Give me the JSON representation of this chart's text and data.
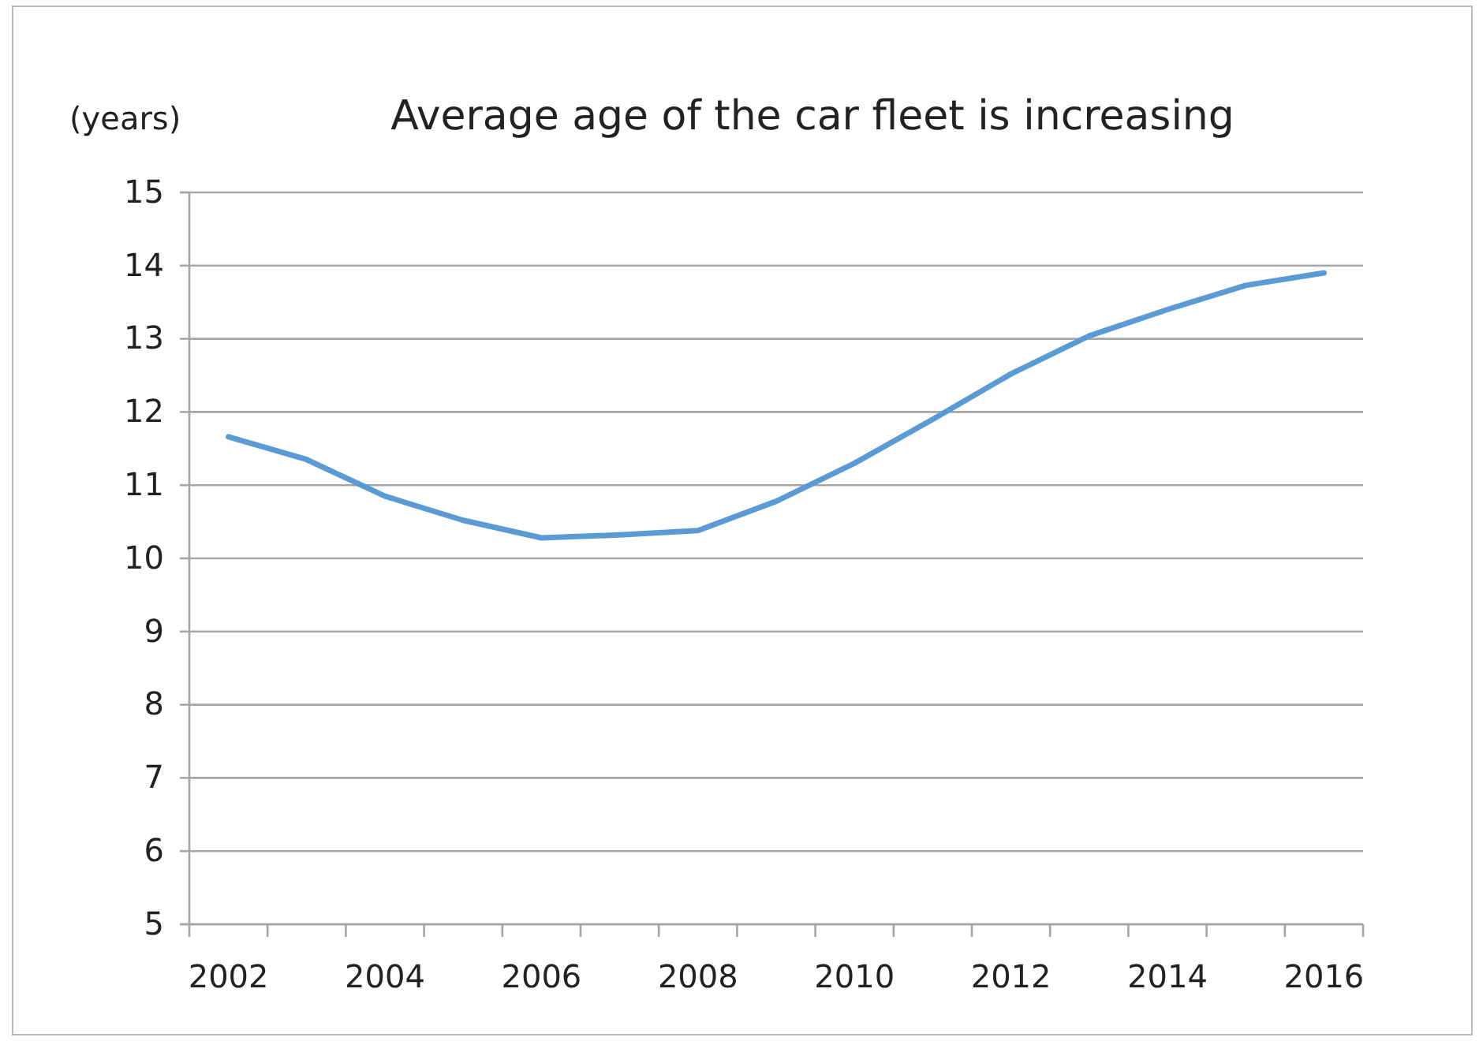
{
  "chart_data": {
    "type": "line",
    "title": "Average age of the car fleet is increasing",
    "ylabel": "(years)",
    "categories": [
      "2002",
      null,
      "2004",
      null,
      "2006",
      null,
      "2008",
      null,
      "2010",
      null,
      "2012",
      null,
      "2014",
      null,
      "2016"
    ],
    "series": [
      {
        "color": "#5b9bd5",
        "values": [
          11.66,
          11.35,
          10.85,
          10.52,
          10.28,
          10.32,
          10.38,
          10.78,
          11.3,
          11.9,
          12.52,
          13.04,
          13.4,
          13.73,
          13.9
        ]
      }
    ],
    "ylim": [
      5,
      15
    ],
    "yticks": [
      5,
      6,
      7,
      8,
      9,
      10,
      11,
      12,
      13,
      14,
      15
    ],
    "grid": "y",
    "marker": "none",
    "line_style": "solid"
  }
}
